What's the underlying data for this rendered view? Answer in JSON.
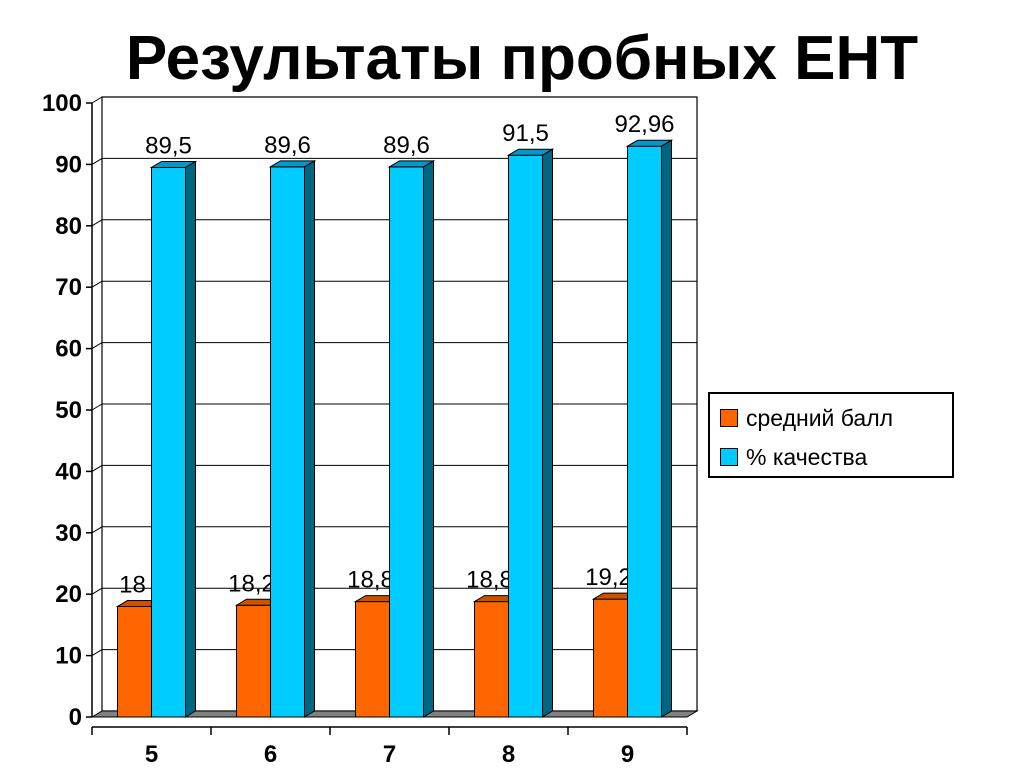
{
  "chart_data": {
    "type": "bar",
    "title": "Результаты пробных ЕНТ",
    "categories": [
      "5",
      "6",
      "7",
      "8",
      "9"
    ],
    "series": [
      {
        "name": "средний балл",
        "values": [
          18,
          18.2,
          18.8,
          18.8,
          19.2
        ],
        "labels": [
          "18",
          "18,2",
          "18,8",
          "18,8",
          "19,2"
        ],
        "color": "#FF6600",
        "side_color": "#B34700",
        "top_color": "#CC5200"
      },
      {
        "name": "% качества",
        "values": [
          89.5,
          89.6,
          89.6,
          91.5,
          92.96
        ],
        "labels": [
          "89,5",
          "89,6",
          "89,6",
          "91,5",
          "92,96"
        ],
        "color": "#00CCFF",
        "side_color": "#006680",
        "top_color": "#0099CC"
      }
    ],
    "ylim": [
      0,
      100
    ],
    "yticks": [
      "0",
      "10",
      "20",
      "30",
      "40",
      "50",
      "60",
      "70",
      "80",
      "90",
      "100"
    ],
    "xlabel": "",
    "ylabel": "",
    "grid": true,
    "style": "3d-column",
    "legend_position": "right"
  }
}
